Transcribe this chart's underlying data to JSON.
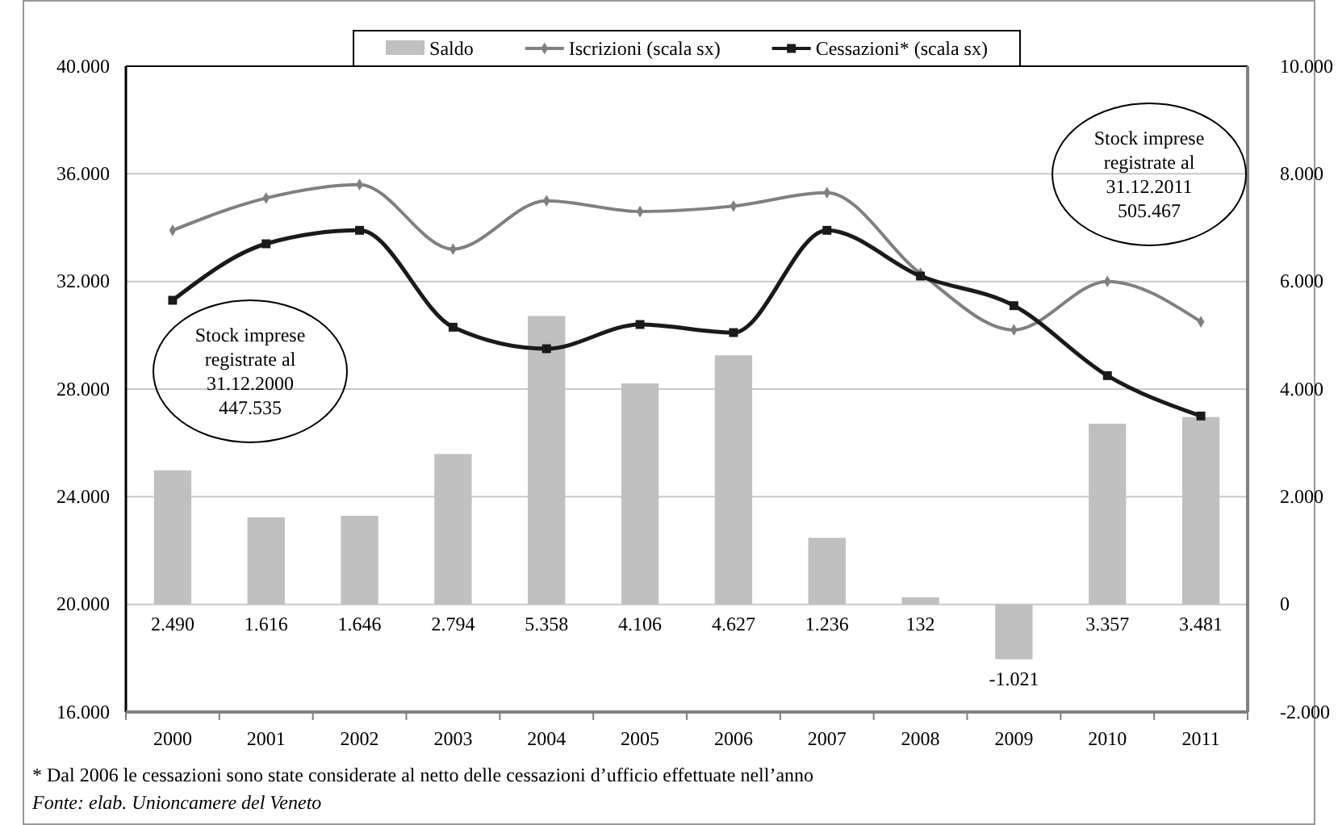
{
  "chart_data": {
    "type": "bar",
    "categories": [
      "2000",
      "2001",
      "2002",
      "2003",
      "2004",
      "2005",
      "2006",
      "2007",
      "2008",
      "2009",
      "2010",
      "2011"
    ],
    "series": [
      {
        "name": "Saldo",
        "axis": "y2",
        "color": "#c0c0c0",
        "values": [
          2490,
          1616,
          1646,
          2794,
          5358,
          4106,
          4627,
          1236,
          132,
          -1021,
          3357,
          3481
        ],
        "value_labels": [
          "2.490",
          "1.616",
          "1.646",
          "2.794",
          "5.358",
          "4.106",
          "4.627",
          "1.236",
          "132",
          "-1.021",
          "3.357",
          "3.481"
        ]
      },
      {
        "name": "Iscrizioni (scala sx)",
        "type": "line",
        "marker": "diamond",
        "color": "#808080",
        "values": [
          33900,
          35100,
          35600,
          33200,
          35000,
          34600,
          34800,
          35300,
          32300,
          30200,
          32000,
          30500
        ]
      },
      {
        "name": "Cessazioni* (scala sx)",
        "type": "line",
        "marker": "square",
        "color": "#1a1a1a",
        "values": [
          31300,
          33400,
          33900,
          30300,
          29500,
          30400,
          30100,
          33900,
          32200,
          31100,
          28500,
          27000
        ]
      }
    ],
    "ylim": [
      16000,
      40000
    ],
    "yticks": [
      {
        "value": 16000,
        "label": "16.000"
      },
      {
        "value": 20000,
        "label": "20.000"
      },
      {
        "value": 24000,
        "label": "24.000"
      },
      {
        "value": 28000,
        "label": "28.000"
      },
      {
        "value": 32000,
        "label": "32.000"
      },
      {
        "value": 36000,
        "label": "36.000"
      },
      {
        "value": 40000,
        "label": "40.000"
      }
    ],
    "y2lim": [
      -2000,
      10000
    ],
    "y2ticks": [
      {
        "value": -2000,
        "label": "-2.000"
      },
      0,
      {
        "value": 2000,
        "label": "2.000"
      },
      {
        "value": 4000,
        "label": "4.000"
      },
      {
        "value": 6000,
        "label": "6.000"
      },
      {
        "value": 8000,
        "label": "8.000"
      },
      {
        "value": 10000,
        "label": "10.000"
      }
    ],
    "grid": "y",
    "legend": "top",
    "line_style": "solid",
    "annotations": [
      "Stock imprese\nregistrate al\n31.12.2000\n447.535",
      "Stock imprese\nregistrate al\n31.12.2011\n505.467",
      "* Dal 2006 le cessazioni sono state considerate al netto delle cessazioni d’ufficio effettuate nell’anno",
      "Fonte: elab. Unioncamere del Veneto"
    ]
  }
}
